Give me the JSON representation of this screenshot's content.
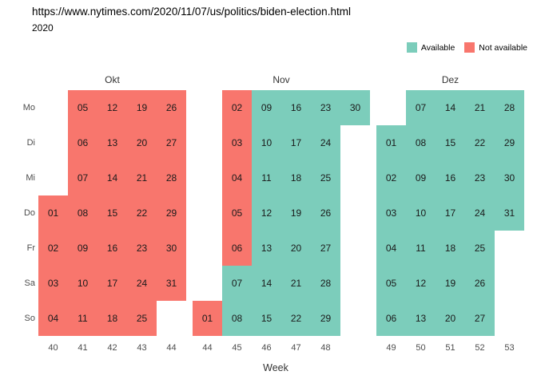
{
  "chart_data": {
    "type": "heatmap",
    "title": "https://www.nytimes.com/2020/11/07/us/politics/biden-election.html",
    "subtitle": "2020",
    "xlabel": "Week",
    "weekdays": [
      "Mo",
      "Di",
      "Mi",
      "Do",
      "Fr",
      "Sa",
      "So"
    ],
    "legend": [
      {
        "key": "A",
        "label": "Available",
        "color": "#7CCDBB"
      },
      {
        "key": "N",
        "label": "Not available",
        "color": "#F8766D"
      }
    ],
    "months": [
      {
        "name": "Okt",
        "columns": 5,
        "week_labels": [
          "40",
          "41",
          "42",
          "43",
          "44"
        ],
        "rows": [
          [
            "",
            "05:N",
            "12:N",
            "19:N",
            "26:N"
          ],
          [
            "",
            "06:N",
            "13:N",
            "20:N",
            "27:N"
          ],
          [
            "",
            "07:N",
            "14:N",
            "21:N",
            "28:N"
          ],
          [
            "01:N",
            "08:N",
            "15:N",
            "22:N",
            "29:N"
          ],
          [
            "02:N",
            "09:N",
            "16:N",
            "23:N",
            "30:N"
          ],
          [
            "03:N",
            "10:N",
            "17:N",
            "24:N",
            "31:N"
          ],
          [
            "04:N",
            "11:N",
            "18:N",
            "25:N",
            ""
          ]
        ]
      },
      {
        "name": "Nov",
        "columns": 6,
        "week_labels": [
          "44",
          "45",
          "46",
          "47",
          "48",
          ""
        ],
        "rows": [
          [
            "",
            "02:N",
            "09:A",
            "16:A",
            "23:A",
            "30:A"
          ],
          [
            "",
            "03:N",
            "10:A",
            "17:A",
            "24:A",
            ""
          ],
          [
            "",
            "04:N",
            "11:A",
            "18:A",
            "25:A",
            ""
          ],
          [
            "",
            "05:N",
            "12:A",
            "19:A",
            "26:A",
            ""
          ],
          [
            "",
            "06:N",
            "13:A",
            "20:A",
            "27:A",
            ""
          ],
          [
            "",
            "07:A",
            "14:A",
            "21:A",
            "28:A",
            ""
          ],
          [
            "01:N",
            "08:A",
            "15:A",
            "22:A",
            "29:A",
            ""
          ]
        ]
      },
      {
        "name": "Dez",
        "columns": 5,
        "week_labels": [
          "49",
          "50",
          "51",
          "52",
          "53"
        ],
        "rows": [
          [
            "",
            "07:A",
            "14:A",
            "21:A",
            "28:A"
          ],
          [
            "01:A",
            "08:A",
            "15:A",
            "22:A",
            "29:A"
          ],
          [
            "02:A",
            "09:A",
            "16:A",
            "23:A",
            "30:A"
          ],
          [
            "03:A",
            "10:A",
            "17:A",
            "24:A",
            "31:A"
          ],
          [
            "04:A",
            "11:A",
            "18:A",
            "25:A",
            ""
          ],
          [
            "05:A",
            "12:A",
            "19:A",
            "26:A",
            ""
          ],
          [
            "06:A",
            "13:A",
            "20:A",
            "27:A",
            ""
          ]
        ]
      }
    ]
  }
}
